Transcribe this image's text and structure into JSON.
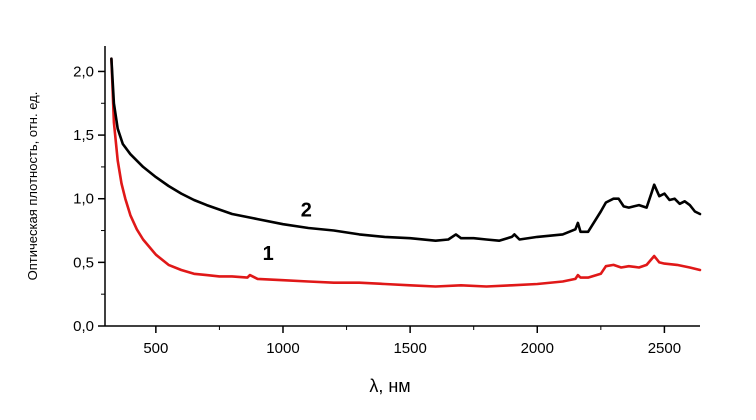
{
  "chart_data": {
    "type": "line",
    "title": "",
    "xlabel": "λ, нм",
    "ylabel": "Оптическая плотность, отн. ед.",
    "xlim": [
      300,
      2640
    ],
    "ylim": [
      0.0,
      2.2
    ],
    "xticks": [
      500,
      1000,
      1500,
      2000,
      2500
    ],
    "xtick_labels": [
      "500",
      "1000",
      "1500",
      "2000",
      "2500"
    ],
    "yticks": [
      0.0,
      0.5,
      1.0,
      1.5,
      2.0
    ],
    "ytick_labels": [
      "0,0",
      "0,5",
      "1,0",
      "1,5",
      "2,0"
    ],
    "grid": false,
    "legend": "none",
    "series": [
      {
        "name": "1",
        "color": "#e01818",
        "x": [
          325,
          335,
          350,
          365,
          380,
          400,
          425,
          450,
          500,
          550,
          600,
          650,
          700,
          750,
          800,
          860,
          870,
          900,
          1000,
          1100,
          1200,
          1300,
          1400,
          1500,
          1600,
          1700,
          1800,
          1900,
          2000,
          2100,
          2150,
          2160,
          2170,
          2200,
          2250,
          2270,
          2300,
          2330,
          2360,
          2400,
          2430,
          2460,
          2480,
          2500,
          2550,
          2600,
          2640
        ],
        "y": [
          2.1,
          1.6,
          1.3,
          1.12,
          1.0,
          0.87,
          0.76,
          0.68,
          0.56,
          0.48,
          0.44,
          0.41,
          0.4,
          0.39,
          0.39,
          0.38,
          0.4,
          0.37,
          0.36,
          0.35,
          0.34,
          0.34,
          0.33,
          0.32,
          0.31,
          0.32,
          0.31,
          0.32,
          0.33,
          0.35,
          0.37,
          0.4,
          0.38,
          0.38,
          0.41,
          0.47,
          0.48,
          0.46,
          0.47,
          0.46,
          0.48,
          0.55,
          0.5,
          0.49,
          0.48,
          0.46,
          0.44
        ]
      },
      {
        "name": "2",
        "color": "#000000",
        "x": [
          325,
          335,
          350,
          370,
          400,
          450,
          500,
          550,
          600,
          650,
          700,
          800,
          900,
          1000,
          1100,
          1200,
          1300,
          1400,
          1500,
          1600,
          1650,
          1680,
          1700,
          1750,
          1800,
          1850,
          1900,
          1910,
          1930,
          2000,
          2100,
          2150,
          2160,
          2170,
          2200,
          2250,
          2270,
          2300,
          2320,
          2340,
          2360,
          2400,
          2430,
          2450,
          2460,
          2480,
          2500,
          2520,
          2540,
          2560,
          2580,
          2600,
          2620,
          2640
        ],
        "y": [
          2.1,
          1.75,
          1.55,
          1.43,
          1.35,
          1.25,
          1.17,
          1.1,
          1.04,
          0.99,
          0.95,
          0.88,
          0.84,
          0.8,
          0.77,
          0.75,
          0.72,
          0.7,
          0.69,
          0.67,
          0.68,
          0.72,
          0.69,
          0.69,
          0.68,
          0.67,
          0.7,
          0.72,
          0.68,
          0.7,
          0.72,
          0.76,
          0.81,
          0.74,
          0.74,
          0.9,
          0.97,
          1.0,
          1.0,
          0.94,
          0.93,
          0.95,
          0.93,
          1.05,
          1.11,
          1.02,
          1.04,
          0.99,
          1.0,
          0.96,
          0.98,
          0.95,
          0.9,
          0.88
        ]
      }
    ],
    "annotations": [
      {
        "text": "2",
        "x": 1070,
        "y": 0.86
      },
      {
        "text": "1",
        "x": 920,
        "y": 0.52
      }
    ]
  }
}
